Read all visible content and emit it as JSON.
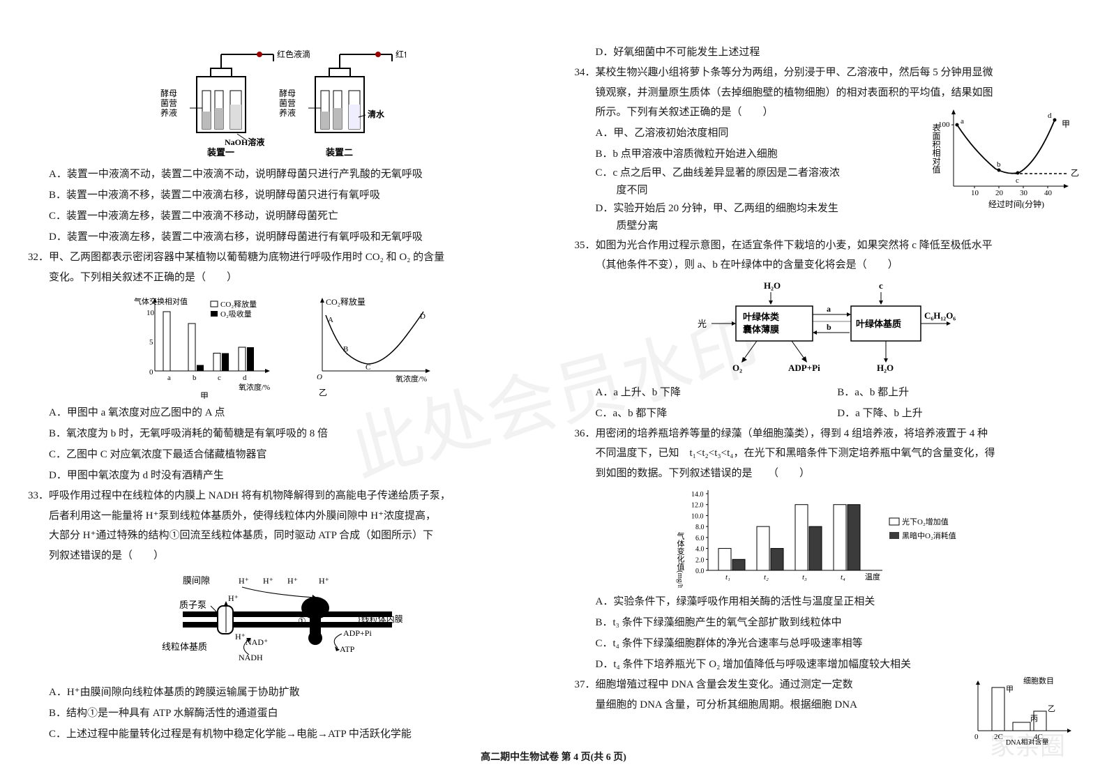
{
  "footer": "高二期中生物试卷 第 4 页(共 6 页)",
  "watermark_main": "此处会员水印",
  "watermark_corner": "家亲圈",
  "left": {
    "device_diagram": {
      "labels": {
        "left_top": "红色液滴",
        "right_top": "红色液滴",
        "left_side": "酵母菌营养液",
        "left_solution": "NaOH溶液",
        "right_side": "酵母菌营养液",
        "right_solution": "清水",
        "left_name": "装置一",
        "right_name": "装置二"
      },
      "colors": {
        "line": "#000000",
        "bg": "#ffffff"
      }
    },
    "q31_opts": {
      "A": "A．装置一中液滴不动，装置二中液滴不动，说明酵母菌只进行产乳酸的无氧呼吸",
      "B": "B．装置一中液滴不移，装置二中液滴右移，说明酵母菌只进行有氧呼吸",
      "C": "C．装置一中液滴左移，装置二中液滴不移动，说明酵母菌死亡",
      "D": "D．装置一中液滴左移，装置二中液滴右移，说明酵母菌进行有氧呼吸和无氧呼吸"
    },
    "q32": {
      "stem1": "32．甲、乙两图都表示密闭容器中某植物以葡萄糖为底物进行呼吸作用时 CO₂ 和 O₂ 的含量",
      "stem2": "变化。下列相关叙述不正确的是（　　）",
      "chart_left": {
        "title": "气体交换相对值",
        "ymax": 10,
        "ymin": 0,
        "ytick_step": 5,
        "xlabel": "氧浓度/%",
        "categories": [
          "a",
          "b",
          "c",
          "d"
        ],
        "co2_release": [
          10,
          8,
          3,
          4
        ],
        "o2_uptake": [
          0,
          1,
          3,
          4
        ],
        "legend": {
          "co2": "CO₂释放量",
          "o2": "O₂吸收量"
        },
        "colors": {
          "co2": "#ffffff",
          "o2": "#000000",
          "axis": "#000000"
        },
        "panel_label": "甲"
      },
      "chart_right": {
        "ylabel": "CO₂释放量",
        "xlabel": "氧浓度/%",
        "points": [
          "A",
          "B",
          "C",
          "D"
        ],
        "panel_label": "乙",
        "curve": [
          [
            0,
            70
          ],
          [
            15,
            40
          ],
          [
            30,
            20
          ],
          [
            50,
            15
          ],
          [
            70,
            25
          ],
          [
            95,
            75
          ]
        ],
        "colors": {
          "line": "#000000",
          "axis": "#000000"
        }
      },
      "opts": {
        "A": "A．甲图中 a 氧浓度对应乙图中的 A 点",
        "B": "B．氧浓度为 b 时，无氧呼吸消耗的葡萄糖是有氧呼吸的 8 倍",
        "C": "C．乙图中 C 对应氧浓度下最适合储藏植物器官",
        "D": "D．甲图中氧浓度为 d 时没有酒精产生"
      }
    },
    "q33": {
      "stem1": "33．呼吸作用过程中在线粒体的内膜上 NADH 将有机物降解得到的高能电子传递给质子泵，",
      "stem2": "后者利用这一能量将 H⁺泵到线粒体基质外，使得线粒体内外膜间隙中 H⁺浓度提高，",
      "stem3": "大部分 H⁺通过特殊的结构①回流至线粒体基质，同时驱动 ATP 合成（如图所示）下",
      "stem4": "列叙述错误的是（　　）",
      "diagram": {
        "labels": {
          "gap": "膜间隙",
          "pump": "质子泵",
          "matrix": "线粒体基质",
          "nadh": "NADH",
          "nad": "NAD⁺",
          "h": "H⁺",
          "one": "①",
          "inner": "线粒体内膜",
          "adp": "ADP+Pi",
          "atp": "ATP"
        },
        "colors": {
          "membrane": "#000000",
          "pump_fill": "#ffffff",
          "atp_fill": "#000000"
        }
      },
      "opts": {
        "A": "A．H⁺由膜间隙向线粒体基质的跨膜运输属于协助扩散",
        "B": "B．结构①是一种具有 ATP 水解酶活性的通道蛋白",
        "C": "C．上述过程中能量转化过程是有机物中稳定化学能→电能→ATP 中活跃化学能"
      }
    }
  },
  "right": {
    "q33_D": "D．好氧细菌中不可能发生上述过程",
    "q34": {
      "stem1": "34．某校生物兴趣小组将萝卜条等分为两组，分别浸于甲、乙溶液中，然后每 5 分钟用显微",
      "stem2": "镜观察，并测量原生质体（去掉细胞壁的植物细胞）的相对表面积的平均值，结果如图",
      "stem3": "所示。下列有关叙述正确的是（　　）",
      "opts": {
        "A": "A．甲、乙溶液初始浓度相同",
        "B": "B．b 点甲溶液中溶质微粒开始进入细胞",
        "C": "C．c 点之后甲、乙曲线差异显著的原因是二者溶液浓度不同",
        "D": "D．实验开始后 20 分钟，甲、乙两组的细胞均未发生质壁分离"
      },
      "chart": {
        "ylabel": "表面积相对值",
        "xlabel": "经过时间(分钟)",
        "ymax": 100,
        "ymin": 55,
        "xticks": [
          10,
          20,
          30,
          40
        ],
        "curve_jia": [
          [
            0,
            100
          ],
          [
            10,
            72
          ],
          [
            20,
            62
          ],
          [
            28,
            60
          ],
          [
            35,
            80
          ],
          [
            42,
            108
          ]
        ],
        "curve_yi_dashed": [
          [
            0,
            100
          ],
          [
            10,
            72
          ],
          [
            20,
            62
          ],
          [
            28,
            60
          ],
          [
            35,
            60
          ],
          [
            45,
            60
          ]
        ],
        "points": {
          "a": [
            0,
            100
          ],
          "b": [
            20,
            62
          ],
          "c": [
            28,
            60
          ],
          "d": [
            42,
            108
          ]
        },
        "series_labels": {
          "jia": "甲",
          "yi": "乙"
        },
        "colors": {
          "line": "#000000",
          "axis": "#000000",
          "dash": "#000000"
        }
      }
    },
    "q35": {
      "stem1": "35．如图为光合作用过程示意图，在适宜条件下栽培的小麦，如果突然将 c 降低至极低水平",
      "stem2": "（其他条件不变），则 a、b 在叶绿体中的含量变化将会是（　　）",
      "diagram": {
        "boxes": {
          "left": "叶绿体类囊体薄膜",
          "right": "叶绿体基质"
        },
        "labels": {
          "light": "光",
          "h2o_in": "H₂O",
          "a": "a",
          "b": "b",
          "c": "c",
          "out": "C₆H₁₂O₆",
          "adp": "ADP+Pi",
          "o2": "O₂",
          "h2o_out": "H₂O"
        },
        "colors": {
          "box_border": "#000000",
          "arrow": "#000000"
        }
      },
      "opts": {
        "A": "A．a 上升、b 下降",
        "B": "B．a、b 都上升",
        "C": "C．a、b 都下降",
        "D": "D．a 下降、b 上升"
      }
    },
    "q36": {
      "stem1": "36．用密闭的培养瓶培养等量的绿藻（单细胞藻类），得到 4 组培养液，将培养液置于 4 种",
      "stem2": "不同温度下，已知　t₁<t₂<t₃<t₄，在光下和黑暗条件下测定培养瓶中氧气的含量变化，得",
      "stem3": "到如图的数据。下列叙述错误的是　　（　　）",
      "chart": {
        "ylabel": "气体变化值(mg/h)",
        "xlabel": "温度",
        "ymax": 14,
        "ymin": 0,
        "ytick_step": 2,
        "categories": [
          "t₁",
          "t₂",
          "t₃",
          "t₄"
        ],
        "light_increase": [
          4,
          8,
          12,
          12
        ],
        "dark_consume": [
          2,
          4,
          8,
          12
        ],
        "legend": {
          "light": "光下O₂增加值",
          "dark": "黑暗中O₂消耗值"
        },
        "colors": {
          "light_fill": "#ffffff",
          "dark_fill": "#3b3b3b",
          "axis": "#000000",
          "bar_border": "#000000"
        }
      },
      "opts": {
        "A": "A．实验条件下，绿藻呼吸作用相关酶的活性与温度呈正相关",
        "B": "B．t₃ 条件下绿藻细胞产生的氧气全部扩散到线粒体中",
        "C": "C．t₄ 条件下绿藻细胞群体的净光合速率与总呼吸速率相等",
        "D": "D．t₄ 条件下培养瓶光下 O₂ 增加值降低与呼吸速率增加幅度较大相关"
      }
    },
    "q37": {
      "stem1": "37．细胞增殖过程中 DNA 含量会发生变化。通过测定一定数",
      "stem2": "量细胞的 DNA 含量，可分析其细胞周期。根据细胞 DNA",
      "chart": {
        "ylabel": "细胞数目",
        "xlabel": "DNA相对含量",
        "xticks": [
          "0",
          "2C",
          "4C"
        ],
        "bars": {
          "jia": 90,
          "bing": 15,
          "yi": 30
        },
        "labels": {
          "jia": "甲",
          "yi": "乙",
          "bing": "丙"
        },
        "colors": {
          "bar_border": "#000000",
          "bar_fill": "#ffffff",
          "axis": "#000000"
        }
      }
    }
  }
}
